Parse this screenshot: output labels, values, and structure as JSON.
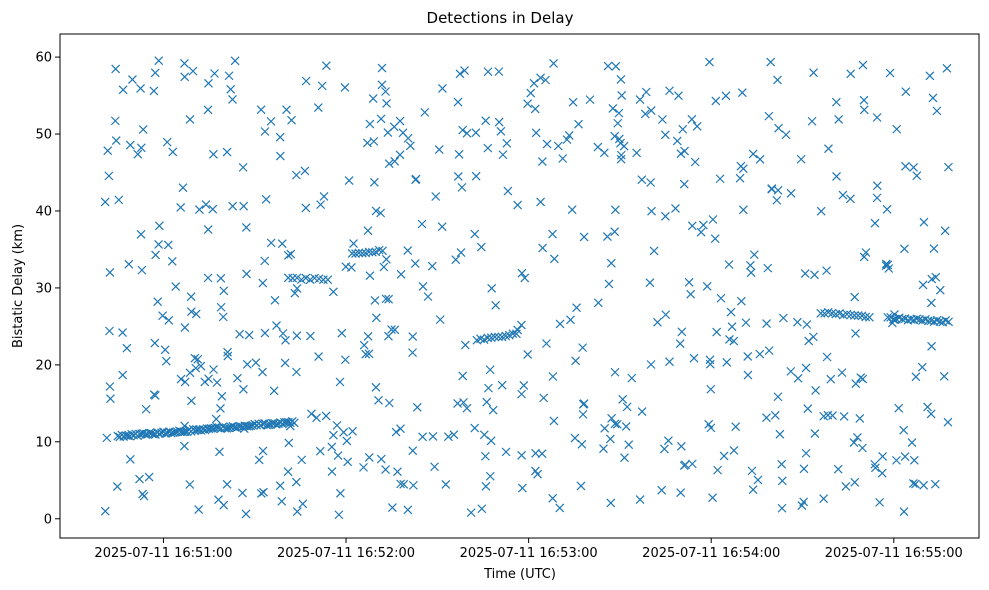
{
  "chart_data": {
    "type": "scatter",
    "title": "Detections in Delay",
    "xlabel": "Time (UTC)",
    "ylabel": "Bistatic Delay (km)",
    "x_ticks": [
      "2025-07-11 16:51:00",
      "2025-07-11 16:52:00",
      "2025-07-11 16:53:00",
      "2025-07-11 16:54:00",
      "2025-07-11 16:55:00"
    ],
    "y_ticks": [
      0,
      10,
      20,
      30,
      40,
      50,
      60
    ],
    "xlim": [
      "2025-07-11 16:50:26",
      "2025-07-11 16:55:28"
    ],
    "ylim": [
      -2.5,
      63
    ],
    "grid": false,
    "marker": "x",
    "color": "#1f77b4",
    "series": [
      {
        "name": "",
        "tracks": [
          {
            "x_start": "2025-07-11 16:50:45",
            "x_end": "2025-07-11 16:51:43",
            "y_start": 10.7,
            "y_end": 12.6,
            "count": 90
          },
          {
            "x_start": "2025-07-11 16:51:41",
            "x_end": "2025-07-11 16:51:54",
            "y_start": 31.2,
            "y_end": 31.2,
            "count": 10
          },
          {
            "x_start": "2025-07-11 16:52:02",
            "x_end": "2025-07-11 16:52:12",
            "y_start": 34.4,
            "y_end": 34.9,
            "count": 10
          },
          {
            "x_start": "2025-07-11 16:52:43",
            "x_end": "2025-07-11 16:52:56",
            "y_start": 23.2,
            "y_end": 24.0,
            "count": 12
          },
          {
            "x_start": "2025-07-11 16:54:36",
            "x_end": "2025-07-11 16:54:52",
            "y_start": 26.8,
            "y_end": 26.3,
            "count": 14
          },
          {
            "x_start": "2025-07-11 16:54:58",
            "x_end": "2025-07-11 16:55:18",
            "y_start": 26.1,
            "y_end": 25.6,
            "count": 22
          }
        ],
        "clutter": {
          "x_start": "2025-07-11 16:50:40",
          "x_end": "2025-07-11 16:55:18",
          "y_min": 0.5,
          "y_max": 59.8,
          "count": 620
        }
      }
    ]
  }
}
